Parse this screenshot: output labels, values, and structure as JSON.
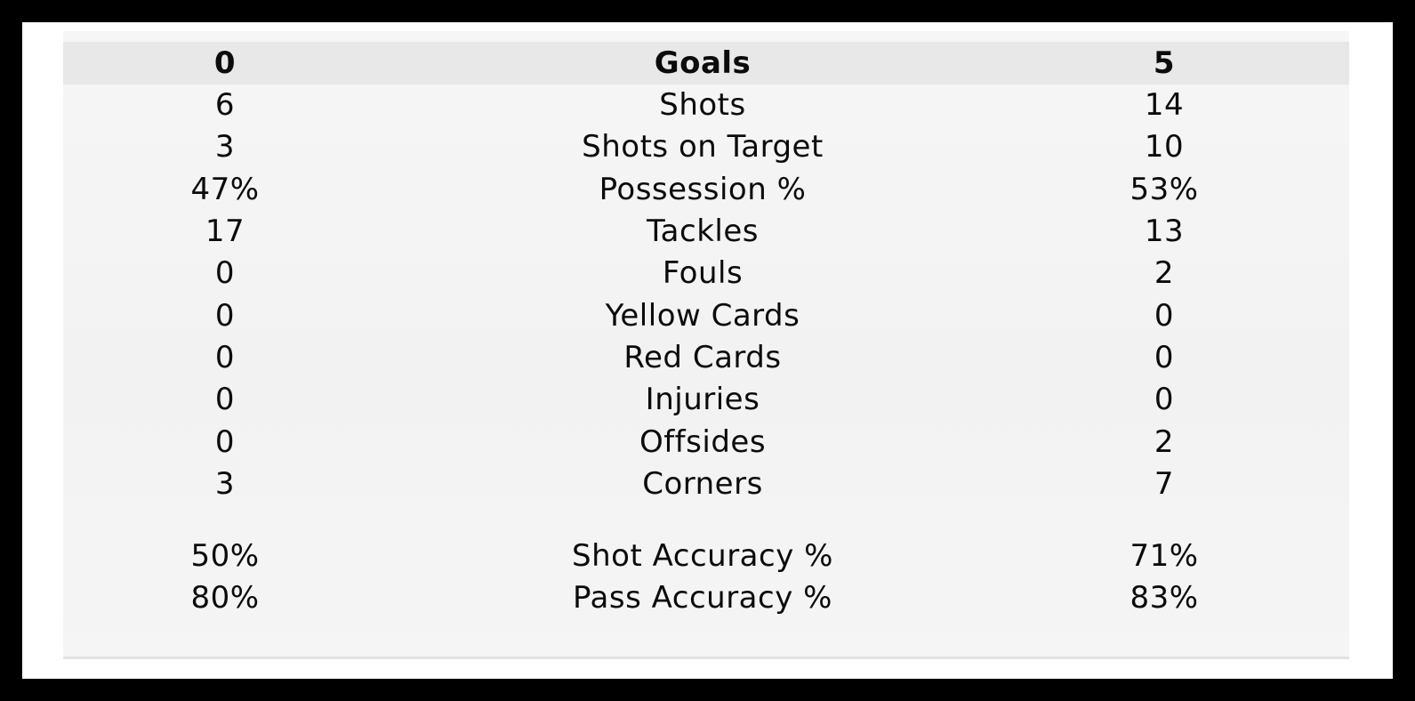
{
  "stats": [
    {
      "home": "0",
      "label": "Goals",
      "away": "5"
    },
    {
      "home": "6",
      "label": "Shots",
      "away": "14"
    },
    {
      "home": "3",
      "label": "Shots on Target",
      "away": "10"
    },
    {
      "home": "47%",
      "label": "Possession %",
      "away": "53%"
    },
    {
      "home": "17",
      "label": "Tackles",
      "away": "13"
    },
    {
      "home": "0",
      "label": "Fouls",
      "away": "2"
    },
    {
      "home": "0",
      "label": "Yellow Cards",
      "away": "0"
    },
    {
      "home": "0",
      "label": "Red Cards",
      "away": "0"
    },
    {
      "home": "0",
      "label": "Injuries",
      "away": "0"
    },
    {
      "home": "0",
      "label": "Offsides",
      "away": "2"
    },
    {
      "home": "3",
      "label": "Corners",
      "away": "7"
    }
  ],
  "accuracy": [
    {
      "home": "50%",
      "label": "Shot Accuracy %",
      "away": "71%"
    },
    {
      "home": "80%",
      "label": "Pass Accuracy %",
      "away": "83%"
    }
  ],
  "colors": {
    "frame": "#000000",
    "panel": "#f4f4f4",
    "header_row": "#e8e8e8",
    "text": "#0b0b0b"
  }
}
